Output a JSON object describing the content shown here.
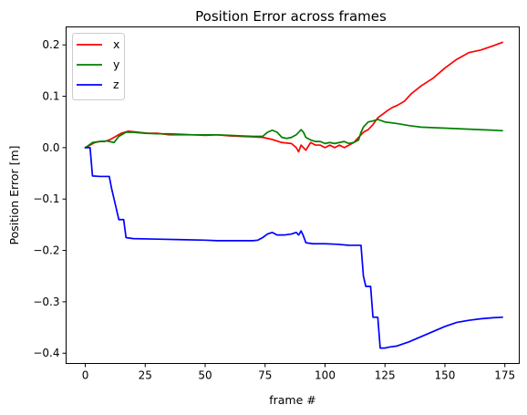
{
  "chart_data": {
    "type": "line",
    "title": "Position Error across frames",
    "xlabel": "frame #",
    "ylabel": "Position Error [m]",
    "xlim": [
      -8,
      181
    ],
    "ylim": [
      -0.42,
      0.235
    ],
    "xticks": [
      0,
      25,
      50,
      75,
      100,
      125,
      150,
      175
    ],
    "yticks": [
      {
        "value": 0.2,
        "label": "0.2"
      },
      {
        "value": 0.1,
        "label": "0.1"
      },
      {
        "value": 0.0,
        "label": "0.0"
      },
      {
        "value": -0.1,
        "label": "−0.1"
      },
      {
        "value": -0.2,
        "label": "−0.2"
      },
      {
        "value": -0.3,
        "label": "−0.3"
      },
      {
        "value": -0.4,
        "label": "−0.4"
      }
    ],
    "grid": false,
    "legend_position": "top-left",
    "series": [
      {
        "name": "x",
        "color": "#ff0000",
        "points": [
          [
            0,
            0.0
          ],
          [
            2,
            0.005
          ],
          [
            4,
            0.01
          ],
          [
            6,
            0.012
          ],
          [
            8,
            0.012
          ],
          [
            10,
            0.015
          ],
          [
            12,
            0.02
          ],
          [
            15,
            0.028
          ],
          [
            18,
            0.032
          ],
          [
            22,
            0.03
          ],
          [
            26,
            0.028
          ],
          [
            30,
            0.028
          ],
          [
            35,
            0.025
          ],
          [
            40,
            0.025
          ],
          [
            45,
            0.025
          ],
          [
            50,
            0.024
          ],
          [
            55,
            0.025
          ],
          [
            60,
            0.023
          ],
          [
            65,
            0.022
          ],
          [
            70,
            0.021
          ],
          [
            74,
            0.02
          ],
          [
            78,
            0.016
          ],
          [
            82,
            0.01
          ],
          [
            86,
            0.008
          ],
          [
            88,
            0.0
          ],
          [
            89,
            -0.008
          ],
          [
            90,
            0.005
          ],
          [
            92,
            -0.005
          ],
          [
            94,
            0.01
          ],
          [
            96,
            0.005
          ],
          [
            98,
            0.005
          ],
          [
            100,
            0.0
          ],
          [
            102,
            0.005
          ],
          [
            104,
            0.0
          ],
          [
            106,
            0.005
          ],
          [
            108,
            0.0
          ],
          [
            110,
            0.005
          ],
          [
            112,
            0.01
          ],
          [
            114,
            0.02
          ],
          [
            116,
            0.03
          ],
          [
            118,
            0.035
          ],
          [
            120,
            0.045
          ],
          [
            122,
            0.058
          ],
          [
            124,
            0.065
          ],
          [
            126,
            0.072
          ],
          [
            128,
            0.078
          ],
          [
            130,
            0.082
          ],
          [
            133,
            0.09
          ],
          [
            136,
            0.105
          ],
          [
            140,
            0.12
          ],
          [
            145,
            0.135
          ],
          [
            150,
            0.155
          ],
          [
            155,
            0.172
          ],
          [
            160,
            0.185
          ],
          [
            165,
            0.19
          ],
          [
            170,
            0.198
          ],
          [
            174,
            0.205
          ]
        ]
      },
      {
        "name": "y",
        "color": "#008000",
        "points": [
          [
            0,
            0.0
          ],
          [
            3,
            0.01
          ],
          [
            6,
            0.012
          ],
          [
            9,
            0.013
          ],
          [
            12,
            0.01
          ],
          [
            14,
            0.022
          ],
          [
            17,
            0.03
          ],
          [
            20,
            0.03
          ],
          [
            25,
            0.028
          ],
          [
            30,
            0.027
          ],
          [
            35,
            0.027
          ],
          [
            40,
            0.026
          ],
          [
            45,
            0.025
          ],
          [
            50,
            0.025
          ],
          [
            55,
            0.025
          ],
          [
            60,
            0.024
          ],
          [
            65,
            0.023
          ],
          [
            70,
            0.022
          ],
          [
            74,
            0.022
          ],
          [
            76,
            0.03
          ],
          [
            78,
            0.034
          ],
          [
            80,
            0.03
          ],
          [
            82,
            0.02
          ],
          [
            84,
            0.018
          ],
          [
            86,
            0.02
          ],
          [
            88,
            0.025
          ],
          [
            90,
            0.035
          ],
          [
            91,
            0.03
          ],
          [
            92,
            0.02
          ],
          [
            94,
            0.015
          ],
          [
            96,
            0.012
          ],
          [
            98,
            0.012
          ],
          [
            100,
            0.008
          ],
          [
            102,
            0.01
          ],
          [
            104,
            0.008
          ],
          [
            106,
            0.01
          ],
          [
            108,
            0.012
          ],
          [
            110,
            0.008
          ],
          [
            112,
            0.01
          ],
          [
            114,
            0.015
          ],
          [
            115,
            0.03
          ],
          [
            116,
            0.04
          ],
          [
            118,
            0.05
          ],
          [
            120,
            0.052
          ],
          [
            122,
            0.055
          ],
          [
            125,
            0.05
          ],
          [
            130,
            0.047
          ],
          [
            135,
            0.043
          ],
          [
            140,
            0.04
          ],
          [
            150,
            0.038
          ],
          [
            160,
            0.036
          ],
          [
            170,
            0.034
          ],
          [
            174,
            0.033
          ]
        ]
      },
      {
        "name": "z",
        "color": "#0000ff",
        "points": [
          [
            0,
            0.0
          ],
          [
            2,
            0.0
          ],
          [
            3,
            -0.055
          ],
          [
            6,
            -0.056
          ],
          [
            10,
            -0.056
          ],
          [
            11,
            -0.08
          ],
          [
            12,
            -0.1
          ],
          [
            13,
            -0.12
          ],
          [
            14,
            -0.14
          ],
          [
            16,
            -0.14
          ],
          [
            17,
            -0.175
          ],
          [
            20,
            -0.177
          ],
          [
            30,
            -0.178
          ],
          [
            40,
            -0.179
          ],
          [
            50,
            -0.18
          ],
          [
            55,
            -0.181
          ],
          [
            60,
            -0.181
          ],
          [
            65,
            -0.181
          ],
          [
            70,
            -0.181
          ],
          [
            72,
            -0.18
          ],
          [
            74,
            -0.175
          ],
          [
            76,
            -0.168
          ],
          [
            78,
            -0.165
          ],
          [
            80,
            -0.17
          ],
          [
            83,
            -0.17
          ],
          [
            86,
            -0.168
          ],
          [
            88,
            -0.165
          ],
          [
            89,
            -0.17
          ],
          [
            90,
            -0.162
          ],
          [
            91,
            -0.172
          ],
          [
            92,
            -0.185
          ],
          [
            95,
            -0.187
          ],
          [
            100,
            -0.187
          ],
          [
            105,
            -0.188
          ],
          [
            110,
            -0.19
          ],
          [
            115,
            -0.19
          ],
          [
            116,
            -0.25
          ],
          [
            117,
            -0.27
          ],
          [
            119,
            -0.27
          ],
          [
            120,
            -0.33
          ],
          [
            122,
            -0.33
          ],
          [
            123,
            -0.39
          ],
          [
            125,
            -0.39
          ],
          [
            127,
            -0.388
          ],
          [
            130,
            -0.386
          ],
          [
            135,
            -0.378
          ],
          [
            140,
            -0.368
          ],
          [
            145,
            -0.358
          ],
          [
            150,
            -0.348
          ],
          [
            155,
            -0.34
          ],
          [
            160,
            -0.336
          ],
          [
            165,
            -0.333
          ],
          [
            170,
            -0.331
          ],
          [
            174,
            -0.33
          ]
        ]
      }
    ]
  }
}
